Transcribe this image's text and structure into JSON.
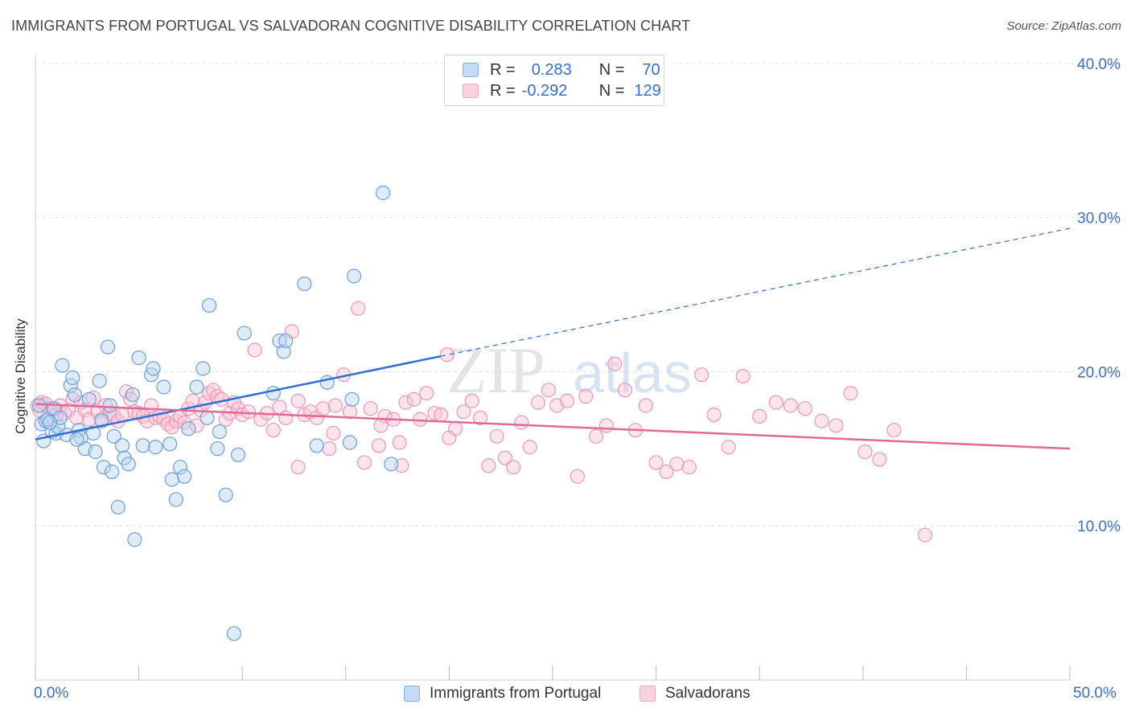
{
  "title": "IMMIGRANTS FROM PORTUGAL VS SALVADORAN COGNITIVE DISABILITY CORRELATION CHART",
  "source": "Source: ZipAtlas.com",
  "watermark": {
    "zip": "ZIP",
    "atlas": "atlas"
  },
  "legend": {
    "rows": [
      {
        "r_label": "R =",
        "r_value": "0.283",
        "n_label": "N =",
        "n_value": "70",
        "color": "#7fb0e8"
      },
      {
        "r_label": "R =",
        "r_value": "-0.292",
        "n_label": "N =",
        "n_value": "129",
        "color": "#f4a7c0"
      }
    ]
  },
  "bottom_legend": [
    {
      "label": "Immigrants from Portugal",
      "color": "#7fb0e8"
    },
    {
      "label": "Salvadorans",
      "color": "#f4a7c0"
    }
  ],
  "x_axis_labels": {
    "min": "0.0%",
    "max": "50.0%"
  },
  "chart_data": {
    "type": "scatter",
    "title": "IMMIGRANTS FROM PORTUGAL VS SALVADORAN COGNITIVE DISABILITY CORRELATION CHART",
    "xlabel": "",
    "ylabel": "Cognitive Disability",
    "xlim": [
      0,
      50
    ],
    "ylim": [
      0,
      42
    ],
    "yticks": [
      10,
      20,
      30,
      40
    ],
    "ytick_labels": [
      "10.0%",
      "20.0%",
      "30.0%",
      "40.0%"
    ],
    "grid": true,
    "series": [
      {
        "name": "Immigrants from Portugal",
        "color": "#7fb0e8",
        "line_color": "#2f6fd1",
        "trend": {
          "x0": 0,
          "y0": 15.6,
          "x1": 19.6,
          "y1": 21.0,
          "dash_to_x": 50,
          "dash_to_y": 29.3
        },
        "points": [
          [
            0.2,
            17.8
          ],
          [
            0.3,
            16.6
          ],
          [
            0.4,
            15.5
          ],
          [
            0.5,
            16.8
          ],
          [
            0.6,
            16.9
          ],
          [
            0.8,
            16.1
          ],
          [
            0.9,
            17.6
          ],
          [
            1.0,
            16.0
          ],
          [
            1.1,
            16.4
          ],
          [
            1.2,
            17.0
          ],
          [
            1.5,
            15.9
          ],
          [
            1.7,
            19.1
          ],
          [
            1.8,
            19.6
          ],
          [
            1.9,
            18.5
          ],
          [
            2.1,
            16.2
          ],
          [
            2.2,
            15.7
          ],
          [
            2.4,
            15.0
          ],
          [
            2.6,
            18.2
          ],
          [
            2.8,
            16.0
          ],
          [
            2.9,
            14.8
          ],
          [
            3.1,
            19.4
          ],
          [
            3.2,
            16.8
          ],
          [
            3.3,
            13.8
          ],
          [
            3.5,
            21.6
          ],
          [
            3.6,
            17.8
          ],
          [
            3.7,
            13.5
          ],
          [
            3.8,
            15.8
          ],
          [
            4.0,
            11.2
          ],
          [
            4.2,
            15.2
          ],
          [
            4.3,
            14.4
          ],
          [
            4.5,
            14.0
          ],
          [
            4.7,
            18.5
          ],
          [
            4.8,
            9.1
          ],
          [
            5.0,
            20.9
          ],
          [
            5.2,
            15.2
          ],
          [
            5.6,
            19.8
          ],
          [
            5.7,
            20.2
          ],
          [
            6.2,
            19.0
          ],
          [
            6.5,
            15.3
          ],
          [
            6.6,
            13.0
          ],
          [
            6.8,
            11.7
          ],
          [
            7.0,
            13.8
          ],
          [
            7.2,
            13.2
          ],
          [
            7.4,
            16.3
          ],
          [
            7.8,
            19.0
          ],
          [
            8.1,
            20.2
          ],
          [
            8.3,
            17.0
          ],
          [
            8.4,
            24.3
          ],
          [
            8.8,
            15.0
          ],
          [
            8.9,
            16.1
          ],
          [
            9.2,
            12.0
          ],
          [
            9.6,
            3.0
          ],
          [
            9.8,
            14.6
          ],
          [
            10.1,
            22.5
          ],
          [
            11.5,
            18.6
          ],
          [
            11.8,
            22.0
          ],
          [
            12.0,
            21.3
          ],
          [
            12.1,
            22.0
          ],
          [
            13.0,
            25.7
          ],
          [
            14.1,
            19.3
          ],
          [
            13.6,
            15.2
          ],
          [
            15.2,
            15.4
          ],
          [
            15.3,
            18.2
          ],
          [
            15.4,
            26.2
          ],
          [
            16.8,
            31.6
          ],
          [
            17.2,
            14.0
          ],
          [
            1.3,
            20.4
          ],
          [
            0.7,
            16.7
          ],
          [
            2.0,
            15.6
          ],
          [
            5.8,
            15.1
          ]
        ]
      },
      {
        "name": "Salvadorans",
        "color": "#f4a7c0",
        "line_color": "#e06a95",
        "trend": {
          "x0": 0,
          "y0": 17.9,
          "x1": 50,
          "y1": 15.0
        },
        "points": [
          [
            0.1,
            17.8
          ],
          [
            0.2,
            17.5
          ],
          [
            0.3,
            18.0
          ],
          [
            0.5,
            17.9
          ],
          [
            0.7,
            17.6
          ],
          [
            0.9,
            17.5
          ],
          [
            1.0,
            17.2
          ],
          [
            1.2,
            17.8
          ],
          [
            1.4,
            17.3
          ],
          [
            1.6,
            17.5
          ],
          [
            1.8,
            18.2
          ],
          [
            2.0,
            17.0
          ],
          [
            2.2,
            18.0
          ],
          [
            2.4,
            17.5
          ],
          [
            2.6,
            16.9
          ],
          [
            2.8,
            18.3
          ],
          [
            3.0,
            17.4
          ],
          [
            3.2,
            16.9
          ],
          [
            3.4,
            17.8
          ],
          [
            3.6,
            17.3
          ],
          [
            3.8,
            17.1
          ],
          [
            4.0,
            16.8
          ],
          [
            4.2,
            17.2
          ],
          [
            4.4,
            18.7
          ],
          [
            4.6,
            18.2
          ],
          [
            4.8,
            17.4
          ],
          [
            5.0,
            17.3
          ],
          [
            5.2,
            17.1
          ],
          [
            5.4,
            16.8
          ],
          [
            5.6,
            17.8
          ],
          [
            5.8,
            17.0
          ],
          [
            6.0,
            17.1
          ],
          [
            6.2,
            16.9
          ],
          [
            6.4,
            16.6
          ],
          [
            6.6,
            16.4
          ],
          [
            6.8,
            16.8
          ],
          [
            7.0,
            17.1
          ],
          [
            7.2,
            16.7
          ],
          [
            7.4,
            17.6
          ],
          [
            7.6,
            18.1
          ],
          [
            7.8,
            16.5
          ],
          [
            8.0,
            17.5
          ],
          [
            8.2,
            18.0
          ],
          [
            8.4,
            18.6
          ],
          [
            8.6,
            18.8
          ],
          [
            8.8,
            18.4
          ],
          [
            9.0,
            18.2
          ],
          [
            9.2,
            16.9
          ],
          [
            9.4,
            17.3
          ],
          [
            9.6,
            18.0
          ],
          [
            9.8,
            17.6
          ],
          [
            10.0,
            17.2
          ],
          [
            10.3,
            17.4
          ],
          [
            10.6,
            21.4
          ],
          [
            10.9,
            16.9
          ],
          [
            11.2,
            17.3
          ],
          [
            11.5,
            16.2
          ],
          [
            11.8,
            17.7
          ],
          [
            12.1,
            17.0
          ],
          [
            12.4,
            22.6
          ],
          [
            12.7,
            18.1
          ],
          [
            13.0,
            17.2
          ],
          [
            13.3,
            17.4
          ],
          [
            13.6,
            17.0
          ],
          [
            13.9,
            17.6
          ],
          [
            14.2,
            15.0
          ],
          [
            14.5,
            17.8
          ],
          [
            14.9,
            19.8
          ],
          [
            15.2,
            17.4
          ],
          [
            15.6,
            24.1
          ],
          [
            15.9,
            14.1
          ],
          [
            16.2,
            17.6
          ],
          [
            16.6,
            15.2
          ],
          [
            16.9,
            17.1
          ],
          [
            17.3,
            16.9
          ],
          [
            17.6,
            15.4
          ],
          [
            17.9,
            18.0
          ],
          [
            18.3,
            18.2
          ],
          [
            18.6,
            16.9
          ],
          [
            18.9,
            18.6
          ],
          [
            19.3,
            17.3
          ],
          [
            19.6,
            17.2
          ],
          [
            20.0,
            15.7
          ],
          [
            20.3,
            16.3
          ],
          [
            20.7,
            17.4
          ],
          [
            21.1,
            18.1
          ],
          [
            21.5,
            17.0
          ],
          [
            21.9,
            13.9
          ],
          [
            22.3,
            15.8
          ],
          [
            22.7,
            14.4
          ],
          [
            23.1,
            13.8
          ],
          [
            23.5,
            16.7
          ],
          [
            23.9,
            15.1
          ],
          [
            24.3,
            18.0
          ],
          [
            24.8,
            18.8
          ],
          [
            25.2,
            17.8
          ],
          [
            25.7,
            18.1
          ],
          [
            26.2,
            13.2
          ],
          [
            26.6,
            18.4
          ],
          [
            27.1,
            15.8
          ],
          [
            27.6,
            16.5
          ],
          [
            28.0,
            20.5
          ],
          [
            28.5,
            18.8
          ],
          [
            29.0,
            16.2
          ],
          [
            29.5,
            17.8
          ],
          [
            30.0,
            14.1
          ],
          [
            30.5,
            13.5
          ],
          [
            31.0,
            14.0
          ],
          [
            31.6,
            13.8
          ],
          [
            32.2,
            19.8
          ],
          [
            32.8,
            17.2
          ],
          [
            33.5,
            15.1
          ],
          [
            34.2,
            19.7
          ],
          [
            35.0,
            17.1
          ],
          [
            35.8,
            18.0
          ],
          [
            36.5,
            17.8
          ],
          [
            37.2,
            17.6
          ],
          [
            38.0,
            16.8
          ],
          [
            38.7,
            16.5
          ],
          [
            39.4,
            18.6
          ],
          [
            40.1,
            14.8
          ],
          [
            40.8,
            14.3
          ],
          [
            41.5,
            16.2
          ],
          [
            43.0,
            9.4
          ],
          [
            19.9,
            21.1
          ],
          [
            12.7,
            13.8
          ],
          [
            14.4,
            16.0
          ],
          [
            16.7,
            16.5
          ],
          [
            17.7,
            13.9
          ]
        ]
      }
    ]
  }
}
